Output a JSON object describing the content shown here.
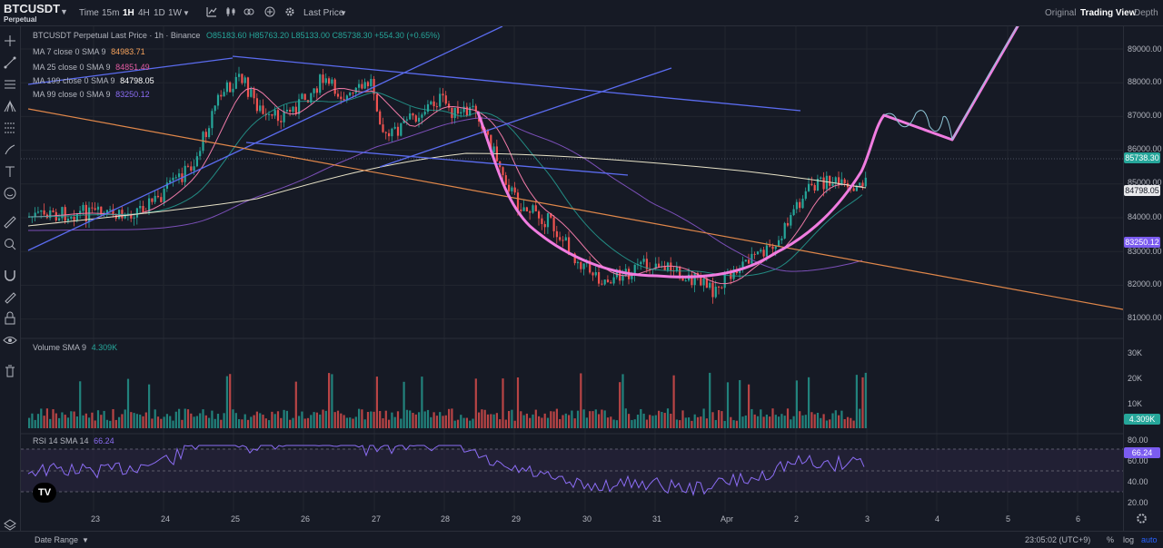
{
  "symbol": {
    "name": "BTCUSDT",
    "subtitle": "Perpetual"
  },
  "toolbar": {
    "intervals": [
      "Time",
      "15m",
      "1H",
      "4H",
      "1D",
      "1W"
    ],
    "active_interval": "1H",
    "price_source": "Last Price",
    "views": [
      "Original",
      "Trading View",
      "Depth"
    ],
    "active_view": "Trading View"
  },
  "legend": {
    "title": "BTCUSDT Perpetual Last Price · 1h · Binance",
    "ohlc": "O85183.60  H85763.20  L85133.00  C85738.30  +554.30 (+0.65%)",
    "ma": [
      {
        "label": "MA 7 close 0 SMA 9",
        "value": "84983.71",
        "color": "#f7a35c"
      },
      {
        "label": "MA 25 close 0 SMA 9",
        "value": "84851.49",
        "color": "#e05aa0"
      },
      {
        "label": "MA 199 close 0 SMA 9",
        "value": "84798.05",
        "color": "#ffffff"
      },
      {
        "label": "MA 99 close 0 SMA 9",
        "value": "83250.12",
        "color": "#8c6df5"
      }
    ]
  },
  "price_axis": [
    "89000.00",
    "88000.00",
    "87000.00",
    "86000.00",
    "85000.00",
    "84000.00",
    "83000.00",
    "82000.00",
    "81000.00"
  ],
  "price_tags": {
    "last": "85738.30",
    "ma199": "84798.05",
    "ma99": "83250.12"
  },
  "volume": {
    "label": "Volume SMA 9",
    "value": "4.309K",
    "axis": [
      "30K",
      "20K",
      "10K"
    ],
    "tag": "4.309K"
  },
  "rsi": {
    "label": "RSI 14 SMA 14",
    "value": "66.24",
    "axis": [
      "80.00",
      "60.00",
      "40.00",
      "20.00"
    ],
    "tag": "66.24"
  },
  "x_axis": [
    "23",
    "24",
    "25",
    "26",
    "27",
    "28",
    "29",
    "30",
    "31",
    "Apr",
    "2",
    "3",
    "4",
    "5",
    "6"
  ],
  "bottom": {
    "date_range": "Date Range",
    "clock": "23:05:02 (UTC+9)",
    "pct": "%",
    "log": "log",
    "auto": "auto"
  },
  "colors": {
    "up": "#26a69a",
    "down": "#ef5350",
    "trend_blue": "#5b6cf0",
    "trend_orange": "#e0874a",
    "drawing": "#f07ce0"
  }
}
